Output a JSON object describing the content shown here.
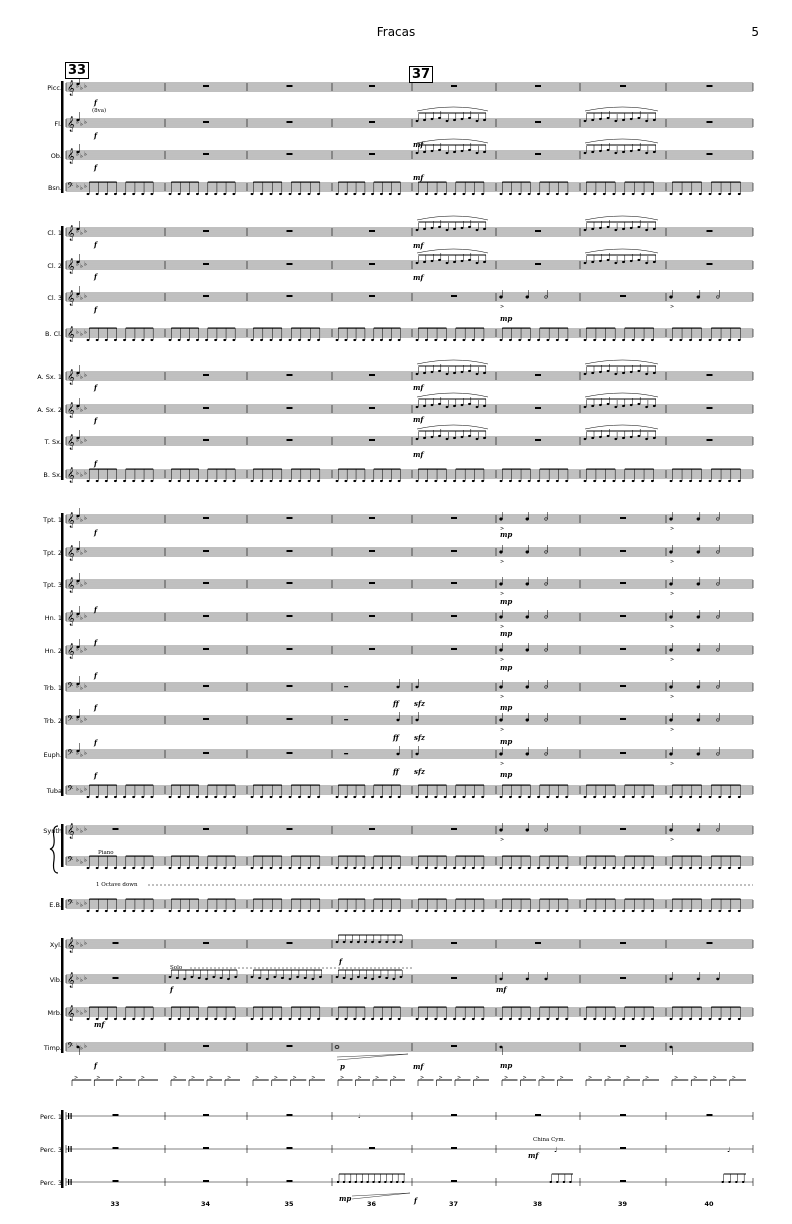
{
  "header": {
    "title": "Fracas",
    "page_number": "5"
  },
  "rehearsal_marks": [
    {
      "label": "33",
      "at_measure": 0
    },
    {
      "label": "37",
      "at_measure": 4
    }
  ],
  "measures": [
    "33",
    "34",
    "35",
    "36",
    "37",
    "38",
    "39",
    "40"
  ],
  "staves": [
    {
      "name": "Picc.",
      "clef": "treble",
      "pattern": "hit"
    },
    {
      "name": "Fl.",
      "clef": "treble",
      "pattern": "melody"
    },
    {
      "name": "Ob.",
      "clef": "treble",
      "pattern": "melody"
    },
    {
      "name": "Bsn.",
      "clef": "bass",
      "pattern": "ostinato"
    },
    {
      "name": "Cl. 1",
      "clef": "treble",
      "pattern": "melody"
    },
    {
      "name": "Cl. 2",
      "clef": "treble",
      "pattern": "melody"
    },
    {
      "name": "Cl. 3",
      "clef": "treble",
      "pattern": "accent"
    },
    {
      "name": "B. Cl.",
      "clef": "treble",
      "pattern": "ostinato"
    },
    {
      "name": "A. Sx. 1",
      "clef": "treble",
      "pattern": "melody"
    },
    {
      "name": "A. Sx. 2",
      "clef": "treble",
      "pattern": "melody"
    },
    {
      "name": "T. Sx.",
      "clef": "treble",
      "pattern": "melody"
    },
    {
      "name": "B. Sx.",
      "clef": "treble",
      "pattern": "ostinato"
    },
    {
      "name": "Tpt. 1",
      "clef": "treble",
      "pattern": "accent"
    },
    {
      "name": "Tpt. 2",
      "clef": "treble",
      "pattern": "accent"
    },
    {
      "name": "Tpt. 3",
      "clef": "treble",
      "pattern": "accent"
    },
    {
      "name": "Hn. 1",
      "clef": "treble",
      "pattern": "accent"
    },
    {
      "name": "Hn. 2",
      "clef": "treble",
      "pattern": "accent"
    },
    {
      "name": "Trb. 1",
      "clef": "bass",
      "pattern": "brass"
    },
    {
      "name": "Trb. 2",
      "clef": "bass",
      "pattern": "brass"
    },
    {
      "name": "Euph.",
      "clef": "bass",
      "pattern": "brass"
    },
    {
      "name": "Tuba",
      "clef": "bass",
      "pattern": "ostinato"
    },
    {
      "name": "Synth",
      "clef": "treble",
      "pattern": "accent"
    },
    {
      "name": "",
      "clef": "bass",
      "pattern": "ostinato"
    },
    {
      "name": "E.B.",
      "clef": "bass",
      "pattern": "ostinato"
    },
    {
      "name": "Xyl.",
      "clef": "treble",
      "pattern": "xyl"
    },
    {
      "name": "Vib.",
      "clef": "treble",
      "pattern": "vib"
    },
    {
      "name": "Mrb.",
      "clef": "treble",
      "pattern": "ostinato"
    },
    {
      "name": "Timp.",
      "clef": "bass",
      "pattern": "timp"
    },
    {
      "name": "",
      "clef": "none",
      "pattern": "rhythm"
    },
    {
      "name": "Perc. 1",
      "clef": "perc",
      "pattern": "perc"
    },
    {
      "name": "Perc. 3",
      "clef": "perc",
      "pattern": "perc"
    },
    {
      "name": "Perc. 3",
      "clef": "perc",
      "pattern": "perc"
    }
  ],
  "annotations": {
    "piano": "Piano",
    "octave_down": "1 Octave down",
    "solo": "Solo",
    "china_cym": "China Cym.",
    "picc_8va": "(8va)",
    "dyn_f": "f",
    "dyn_mf": "mf",
    "dyn_mp": "mp",
    "dyn_p": "p",
    "dyn_ff": "ff",
    "dyn_sfz": "sfz"
  }
}
